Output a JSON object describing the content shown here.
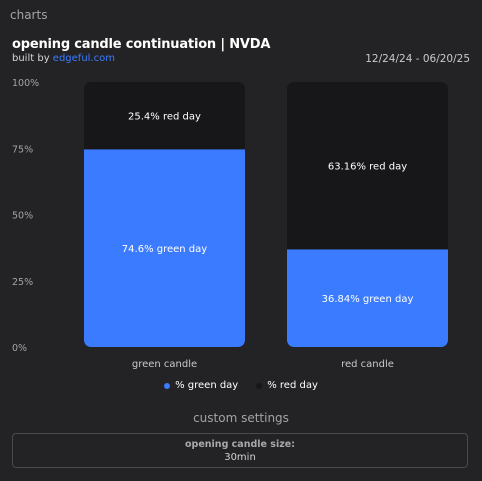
{
  "header": {
    "section_label": "charts",
    "title": "opening candle continuation | NVDA",
    "byline_prefix": "built by ",
    "byline_link": "edgeful.com",
    "date_range": "12/24/24 - 06/20/25"
  },
  "colors": {
    "green_series": "#3b7bff",
    "red_series": "#17171a",
    "background": "#232325"
  },
  "chart_data": {
    "type": "bar",
    "stacked": true,
    "categories": [
      "green candle",
      "red candle"
    ],
    "series": [
      {
        "name": "% green day",
        "values": [
          74.6,
          36.84
        ],
        "labels": [
          "74.6% green day",
          "36.84% green day"
        ],
        "color": "#3b7bff"
      },
      {
        "name": "% red day",
        "values": [
          25.4,
          63.16
        ],
        "labels": [
          "25.4% red day",
          "63.16% red day"
        ],
        "color": "#17171a"
      }
    ],
    "yticks": [
      "0%",
      "25%",
      "50%",
      "75%",
      "100%"
    ],
    "ylim": [
      0,
      100
    ],
    "grid": false,
    "legend_position": "bottom"
  },
  "custom_settings": {
    "title": "custom settings",
    "items": [
      {
        "label": "opening candle size:",
        "value": "30min"
      }
    ]
  }
}
